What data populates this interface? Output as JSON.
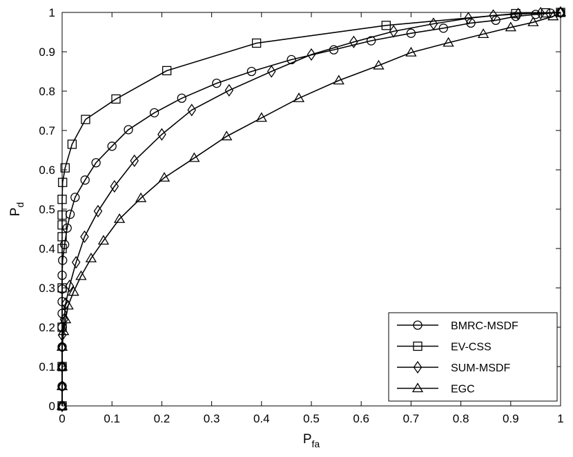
{
  "chart_data": {
    "type": "line",
    "title": "",
    "xlabel": {
      "main": "P",
      "sub": "fa"
    },
    "ylabel": {
      "main": "P",
      "sub": "d"
    },
    "xlim": [
      0,
      1
    ],
    "ylim": [
      0,
      1
    ],
    "grid": false,
    "legend_placement": "bottom-right",
    "x_ticks": [
      "0",
      "0.1",
      "0.2",
      "0.3",
      "0.4",
      "0.5",
      "0.6",
      "0.7",
      "0.8",
      "0.9",
      "1"
    ],
    "y_ticks": [
      "0",
      "0.1",
      "0.2",
      "0.3",
      "0.4",
      "0.5",
      "0.6",
      "0.7",
      "0.8",
      "0.9",
      "1"
    ],
    "series": [
      {
        "name": "BMRC-MSDF",
        "marker": "circle",
        "points": [
          [
            0,
            0
          ],
          [
            0,
            0.05
          ],
          [
            0,
            0.1
          ],
          [
            0,
            0.15
          ],
          [
            0,
            0.2
          ],
          [
            0,
            0.235
          ],
          [
            0,
            0.265
          ],
          [
            0,
            0.297
          ],
          [
            0,
            0.332
          ],
          [
            0.001,
            0.37
          ],
          [
            0.005,
            0.41
          ],
          [
            0.01,
            0.452
          ],
          [
            0.016,
            0.487
          ],
          [
            0.026,
            0.53
          ],
          [
            0.046,
            0.574
          ],
          [
            0.068,
            0.618
          ],
          [
            0.1,
            0.66
          ],
          [
            0.133,
            0.702
          ],
          [
            0.185,
            0.745
          ],
          [
            0.24,
            0.782
          ],
          [
            0.31,
            0.82
          ],
          [
            0.38,
            0.85
          ],
          [
            0.46,
            0.88
          ],
          [
            0.545,
            0.905
          ],
          [
            0.62,
            0.928
          ],
          [
            0.7,
            0.947
          ],
          [
            0.765,
            0.96
          ],
          [
            0.82,
            0.973
          ],
          [
            0.87,
            0.98
          ],
          [
            0.91,
            0.99
          ],
          [
            0.95,
            0.995
          ],
          [
            0.98,
            0.998
          ],
          [
            1,
            1
          ]
        ]
      },
      {
        "name": "EV-CSS",
        "marker": "square",
        "points": [
          [
            0,
            0
          ],
          [
            0,
            0.1
          ],
          [
            0,
            0.2
          ],
          [
            0,
            0.3
          ],
          [
            0,
            0.4
          ],
          [
            0,
            0.43
          ],
          [
            0,
            0.46
          ],
          [
            0,
            0.485
          ],
          [
            0,
            0.525
          ],
          [
            0.001,
            0.568
          ],
          [
            0.006,
            0.605
          ],
          [
            0.02,
            0.665
          ],
          [
            0.047,
            0.728
          ],
          [
            0.108,
            0.78
          ],
          [
            0.21,
            0.852
          ],
          [
            0.39,
            0.922
          ],
          [
            0.65,
            0.967
          ],
          [
            0.91,
            0.997
          ],
          [
            0.97,
            0.999
          ],
          [
            1,
            1
          ]
        ]
      },
      {
        "name": "SUM-MSDF",
        "marker": "diamond",
        "points": [
          [
            0,
            0
          ],
          [
            0,
            0.05
          ],
          [
            0,
            0.1
          ],
          [
            0,
            0.15
          ],
          [
            0,
            0.18
          ],
          [
            0.004,
            0.22
          ],
          [
            0.007,
            0.26
          ],
          [
            0.015,
            0.305
          ],
          [
            0.028,
            0.365
          ],
          [
            0.045,
            0.43
          ],
          [
            0.072,
            0.495
          ],
          [
            0.105,
            0.558
          ],
          [
            0.145,
            0.623
          ],
          [
            0.2,
            0.69
          ],
          [
            0.26,
            0.752
          ],
          [
            0.335,
            0.802
          ],
          [
            0.42,
            0.85
          ],
          [
            0.5,
            0.893
          ],
          [
            0.585,
            0.925
          ],
          [
            0.665,
            0.952
          ],
          [
            0.745,
            0.971
          ],
          [
            0.815,
            0.985
          ],
          [
            0.865,
            0.992
          ],
          [
            0.915,
            0.996
          ],
          [
            0.96,
            0.998
          ],
          [
            1,
            1
          ]
        ]
      },
      {
        "name": "EGC",
        "marker": "triangle",
        "points": [
          [
            0,
            0
          ],
          [
            0,
            0.05
          ],
          [
            0,
            0.1
          ],
          [
            0,
            0.15
          ],
          [
            0.003,
            0.19
          ],
          [
            0.007,
            0.22
          ],
          [
            0.012,
            0.255
          ],
          [
            0.023,
            0.29
          ],
          [
            0.038,
            0.33
          ],
          [
            0.058,
            0.375
          ],
          [
            0.083,
            0.42
          ],
          [
            0.115,
            0.475
          ],
          [
            0.158,
            0.528
          ],
          [
            0.205,
            0.58
          ],
          [
            0.265,
            0.63
          ],
          [
            0.33,
            0.685
          ],
          [
            0.4,
            0.732
          ],
          [
            0.475,
            0.782
          ],
          [
            0.555,
            0.827
          ],
          [
            0.635,
            0.865
          ],
          [
            0.7,
            0.898
          ],
          [
            0.775,
            0.923
          ],
          [
            0.845,
            0.945
          ],
          [
            0.9,
            0.962
          ],
          [
            0.945,
            0.975
          ],
          [
            0.985,
            0.99
          ],
          [
            1,
            1
          ]
        ]
      }
    ]
  }
}
